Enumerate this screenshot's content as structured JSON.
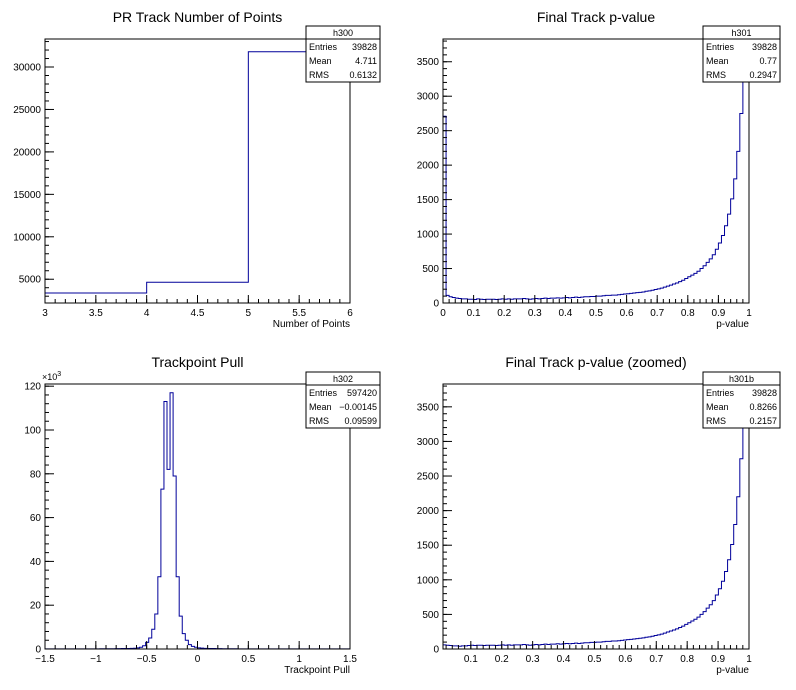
{
  "chart_data": [
    {
      "type": "histogram",
      "name": "h300",
      "title": "PR Track Number of Points",
      "xlabel": "Number of Points",
      "ylabel": "",
      "xlim": [
        3,
        6
      ],
      "ylim": [
        2200,
        33300
      ],
      "x_ticks": [
        "3",
        "3.5",
        "4",
        "4.5",
        "5",
        "5.5",
        "6"
      ],
      "y_ticks": [
        "5000",
        "10000",
        "15000",
        "20000",
        "25000",
        "30000"
      ],
      "y_multiplier": "",
      "bins": [
        {
          "lo": 3,
          "hi": 4,
          "value": 3380
        },
        {
          "lo": 4,
          "hi": 5,
          "value": 4650
        },
        {
          "lo": 5,
          "hi": 6,
          "value": 31800
        }
      ],
      "stats": {
        "title": "h300",
        "rows": [
          {
            "label": "Entries",
            "value": "39828"
          },
          {
            "label": "Mean",
            "value": "4.711"
          },
          {
            "label": "RMS",
            "value": "0.6132"
          }
        ]
      }
    },
    {
      "type": "histogram",
      "name": "h301",
      "title": "Final Track p-value",
      "xlabel": "p-value",
      "ylabel": "",
      "xlim": [
        0,
        1
      ],
      "ylim": [
        0,
        3830
      ],
      "x_ticks": [
        "0",
        "0.1",
        "0.2",
        "0.3",
        "0.4",
        "0.5",
        "0.6",
        "0.7",
        "0.8",
        "0.9",
        "1"
      ],
      "y_ticks": [
        "0",
        "500",
        "1000",
        "1500",
        "2000",
        "2500",
        "3000",
        "3500"
      ],
      "y_multiplier": "",
      "bin_start": 0,
      "bin_width": 0.01,
      "values": [
        2710,
        110,
        90,
        80,
        70,
        65,
        60,
        60,
        55,
        55,
        50,
        60,
        55,
        50,
        55,
        55,
        55,
        50,
        55,
        60,
        55,
        60,
        55,
        60,
        60,
        60,
        65,
        60,
        55,
        60,
        65,
        60,
        65,
        70,
        65,
        70,
        70,
        75,
        70,
        75,
        80,
        75,
        80,
        85,
        80,
        85,
        90,
        90,
        95,
        95,
        100,
        100,
        105,
        110,
        110,
        115,
        115,
        120,
        125,
        130,
        135,
        140,
        145,
        150,
        155,
        160,
        170,
        175,
        185,
        195,
        205,
        215,
        230,
        245,
        260,
        275,
        290,
        310,
        330,
        355,
        380,
        405,
        430,
        460,
        500,
        540,
        590,
        640,
        700,
        780,
        870,
        980,
        1120,
        1290,
        1510,
        1800,
        2200,
        2750,
        3230,
        3600
      ],
      "stats": {
        "title": "h301",
        "rows": [
          {
            "label": "Entries",
            "value": "39828"
          },
          {
            "label": "Mean",
            "value": "0.77"
          },
          {
            "label": "RMS",
            "value": "0.2947"
          }
        ]
      }
    },
    {
      "type": "histogram",
      "name": "h302",
      "title": "Trackpoint Pull",
      "xlabel": "Trackpoint Pull",
      "ylabel": "",
      "xlim": [
        -1.5,
        1.5
      ],
      "ylim": [
        0,
        121
      ],
      "x_ticks": [
        "−1.5",
        "−1",
        "−0.5",
        "0",
        "0.5",
        "1",
        "1.5"
      ],
      "y_ticks": [
        "0",
        "20",
        "40",
        "60",
        "80",
        "100",
        "120"
      ],
      "y_multiplier": "×10",
      "y_multiplier_exp": "3",
      "bin_start": -1.5,
      "bin_width": 0.03,
      "values": [
        0.05,
        0.05,
        0.05,
        0.05,
        0.05,
        0.05,
        0.05,
        0.05,
        0.05,
        0.05,
        0.05,
        0.05,
        0.05,
        0.05,
        0.05,
        0.05,
        0.05,
        0.05,
        0.1,
        0.1,
        0.1,
        0.1,
        0.1,
        0.15,
        0.15,
        0.2,
        0.2,
        0.25,
        0.3,
        0.35,
        0.5,
        0.8,
        1.5,
        3,
        5,
        9,
        16,
        33,
        73,
        113,
        82,
        117,
        79,
        33,
        15,
        7,
        4,
        2,
        1.2,
        0.8,
        0.5,
        0.4,
        0.3,
        0.25,
        0.2,
        0.2,
        0.15,
        0.15,
        0.1,
        0.1,
        0.1,
        0.1,
        0.1,
        0.05,
        0.05,
        0.05,
        0.05,
        0.05,
        0.05,
        0.05,
        0.05,
        0.05,
        0.05,
        0.05,
        0.05,
        0.05,
        0.05,
        0.05,
        0.05,
        0.05,
        0.05,
        0.05,
        0.05,
        0.05,
        0.05,
        0.05,
        0.05,
        0.05,
        0.05,
        0.05,
        0.05,
        0.05,
        0.05,
        0.05,
        0.05,
        0.05,
        0.05,
        0.05,
        0.05,
        0.05
      ],
      "stats": {
        "title": "h302",
        "rows": [
          {
            "label": "Entries",
            "value": "597420"
          },
          {
            "label": "Mean",
            "value": "−0.00145"
          },
          {
            "label": "RMS",
            "value": "0.09599"
          }
        ]
      }
    },
    {
      "type": "histogram",
      "name": "h301b",
      "title": "Final Track p-value (zoomed)",
      "xlabel": "p-value",
      "ylabel": "",
      "xlim": [
        0.01,
        1
      ],
      "ylim": [
        0,
        3830
      ],
      "x_ticks": [
        "0.1",
        "0.2",
        "0.3",
        "0.4",
        "0.5",
        "0.6",
        "0.7",
        "0.8",
        "0.9",
        "1"
      ],
      "y_ticks": [
        "0",
        "500",
        "1000",
        "1500",
        "2000",
        "2500",
        "3000",
        "3500"
      ],
      "y_multiplier": "",
      "bin_start": 0.01,
      "bin_width": 0.0099,
      "values": [
        60,
        55,
        50,
        45,
        45,
        40,
        45,
        45,
        50,
        55,
        50,
        55,
        55,
        50,
        55,
        55,
        55,
        50,
        55,
        60,
        55,
        60,
        55,
        60,
        60,
        60,
        65,
        60,
        55,
        60,
        65,
        60,
        65,
        70,
        65,
        70,
        70,
        75,
        70,
        75,
        80,
        75,
        80,
        85,
        80,
        85,
        90,
        90,
        95,
        95,
        100,
        100,
        105,
        110,
        110,
        115,
        115,
        120,
        125,
        130,
        135,
        140,
        145,
        150,
        155,
        160,
        170,
        175,
        185,
        195,
        205,
        215,
        230,
        245,
        260,
        275,
        290,
        310,
        330,
        355,
        380,
        405,
        430,
        460,
        500,
        540,
        590,
        640,
        700,
        780,
        870,
        980,
        1120,
        1290,
        1510,
        1800,
        2200,
        2750,
        3230,
        3600
      ],
      "stats": {
        "title": "h301b",
        "rows": [
          {
            "label": "Entries",
            "value": "39828"
          },
          {
            "label": "Mean",
            "value": "0.8266"
          },
          {
            "label": "RMS",
            "value": "0.2157"
          }
        ]
      }
    }
  ]
}
